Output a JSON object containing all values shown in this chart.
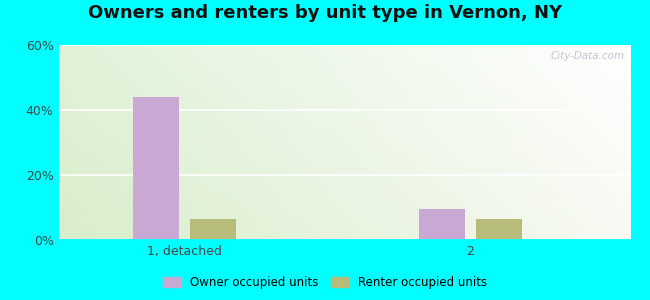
{
  "title": "Owners and renters by unit type in Vernon, NY",
  "categories": [
    "1, detached",
    "2"
  ],
  "owner_values": [
    44.0,
    9.5
  ],
  "renter_values": [
    6.5,
    6.5
  ],
  "owner_color": "#c9a8d4",
  "renter_color": "#b8bc7a",
  "ylim": [
    0,
    60
  ],
  "yticks": [
    0,
    20,
    40,
    60
  ],
  "ytick_labels": [
    "0%",
    "20%",
    "40%",
    "60%"
  ],
  "bar_width": 0.08,
  "group_centers": [
    0.22,
    0.72
  ],
  "xlim": [
    0.0,
    1.0
  ],
  "outer_bg": "#00ffff",
  "watermark": "City-Data.com",
  "legend_owner": "Owner occupied units",
  "legend_renter": "Renter occupied units",
  "title_fontsize": 13,
  "label_fontsize": 9,
  "bg_colors_lr": [
    "#ddeedd",
    "#f0faf5"
  ],
  "bg_colors_tb": [
    "#e8f5e8",
    "#f8fffe"
  ]
}
